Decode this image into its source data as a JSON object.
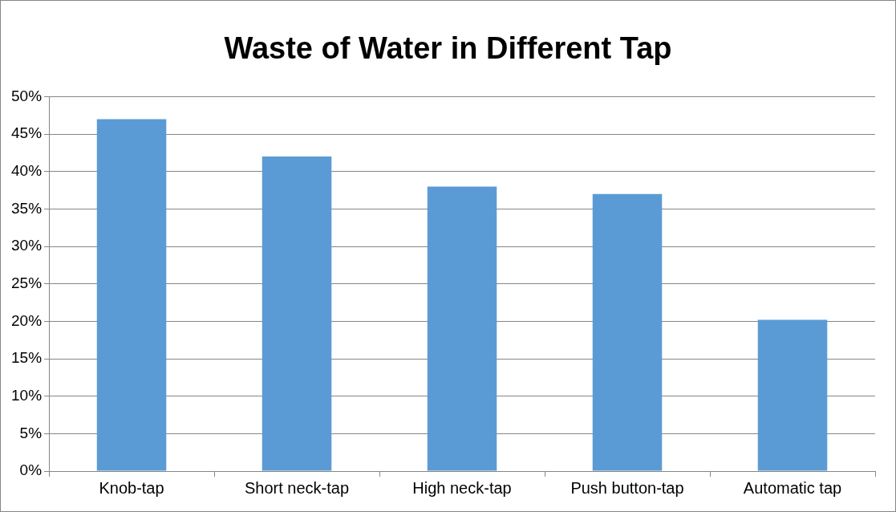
{
  "chart_data": {
    "type": "bar",
    "title": "Waste of Water in Different Tap",
    "categories": [
      "Knob-tap",
      "Short neck-tap",
      "High neck-tap",
      "Push button-tap",
      "Automatic tap"
    ],
    "values": [
      47,
      42,
      38,
      37,
      20.2
    ],
    "color": "#5b9bd5",
    "ylim": [
      0,
      50
    ],
    "yticks": [
      {
        "value": 0,
        "label": "0%"
      },
      {
        "value": 5,
        "label": "5%"
      },
      {
        "value": 10,
        "label": "10%"
      },
      {
        "value": 15,
        "label": "15%"
      },
      {
        "value": 20,
        "label": "20%"
      },
      {
        "value": 25,
        "label": "25%"
      },
      {
        "value": 30,
        "label": "30%"
      },
      {
        "value": 35,
        "label": "35%"
      },
      {
        "value": 40,
        "label": "40%"
      },
      {
        "value": 45,
        "label": "45%"
      },
      {
        "value": 50,
        "label": "50%"
      }
    ],
    "grid": "y",
    "legend": false
  }
}
